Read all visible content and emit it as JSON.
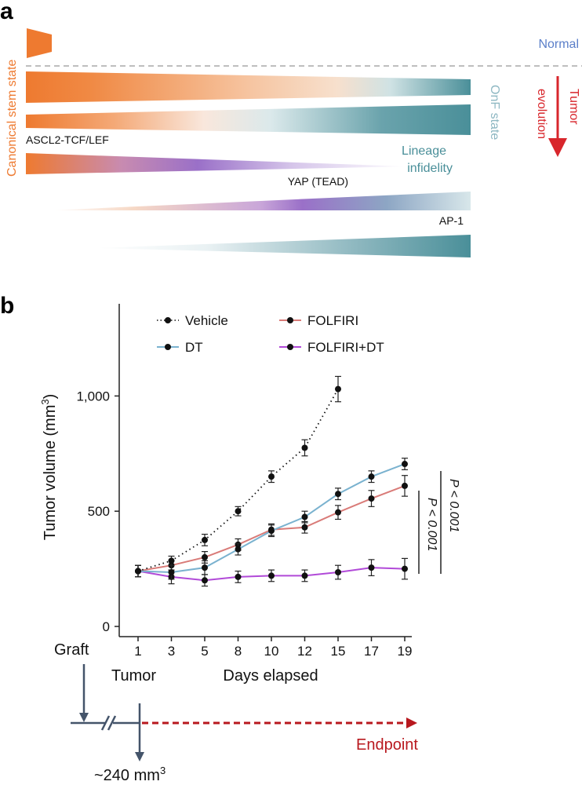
{
  "panel_a": {
    "label": "a",
    "normal_label": "Normal",
    "canonical_label": "Canonical stem state",
    "onf_label": "OnF state",
    "tumor_evolution_line1": "Tumor",
    "tumor_evolution_line2": "evolution",
    "ascl2_label": "ASCL2-TCF/LEF",
    "lineage_line1": "Lineage",
    "lineage_line2": "infidelity",
    "yap_label": "YAP (TEAD)",
    "ap1_label": "AP-1",
    "colors": {
      "orange": "#ee7a30",
      "teal": "#4a8f99",
      "purple": "#9a70c8",
      "red": "#d8262c",
      "blue_label": "#5b7fc9",
      "light_teal": "#8db7c2"
    }
  },
  "panel_b": {
    "label": "b",
    "p_value_1": "P < 0.001",
    "p_value_2": "P < 0.001",
    "graft_label": "Graft",
    "tumor_label": "Tumor",
    "volume_label": "~240 mm",
    "volume_sup": "3",
    "endpoint_label": "Endpoint",
    "colors": {
      "arrow": "#44546a",
      "endpoint": "#b8181e"
    }
  },
  "chart_data": {
    "type": "line",
    "xlabel": "Days elapsed",
    "ylabel": "Tumor volume (mm",
    "ylabel_sup": "3",
    "ylabel_end": ")",
    "ylim": [
      0,
      1400
    ],
    "yticks": [
      0,
      500,
      1000
    ],
    "ytick_labels": [
      "0",
      "500",
      "1,000"
    ],
    "categories": [
      "1",
      "3",
      "5",
      "8",
      "10",
      "12",
      "15",
      "17",
      "19"
    ],
    "legend_position": "top",
    "grid": false,
    "series": [
      {
        "name": "Vehicle",
        "color": "#111111",
        "style": "dotted",
        "values": [
          240,
          285,
          375,
          500,
          650,
          775,
          1030,
          null,
          null
        ],
        "errors": [
          25,
          20,
          25,
          20,
          25,
          35,
          55,
          null,
          null
        ]
      },
      {
        "name": "FOLFIRI",
        "color": "#d97b78",
        "style": "solid",
        "values": [
          240,
          265,
          300,
          355,
          420,
          430,
          495,
          555,
          610
        ],
        "errors": [
          25,
          20,
          25,
          25,
          25,
          25,
          30,
          35,
          45
        ]
      },
      {
        "name": "DT",
        "color": "#7ab2cf",
        "style": "solid",
        "values": [
          240,
          235,
          255,
          335,
          415,
          475,
          575,
          650,
          705
        ],
        "errors": [
          25,
          30,
          30,
          25,
          25,
          25,
          25,
          25,
          25
        ]
      },
      {
        "name": "FOLFIRI+DT",
        "color": "#b14ad8",
        "style": "solid",
        "values": [
          240,
          215,
          200,
          215,
          220,
          220,
          235,
          255,
          250
        ],
        "errors": [
          25,
          30,
          25,
          25,
          25,
          25,
          30,
          35,
          45
        ]
      }
    ]
  }
}
